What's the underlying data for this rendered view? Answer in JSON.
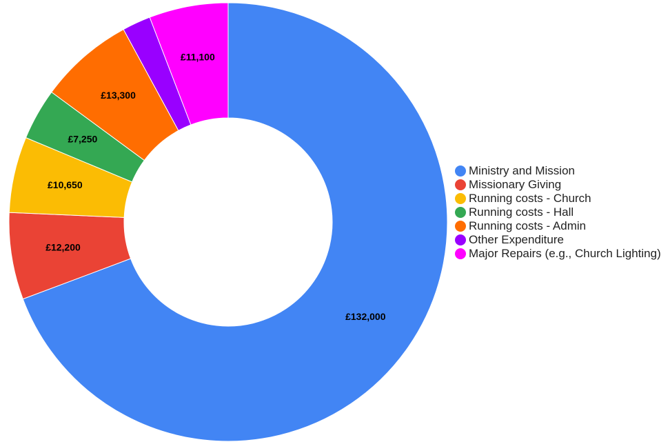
{
  "chart_data": {
    "type": "donut",
    "categories": [
      "Ministry and Mission",
      "Missionary Giving",
      "Running costs - Church",
      "Running costs - Hall",
      "Running costs - Admin",
      "Other Expenditure",
      "Major Repairs (e.g., Church Lighting)"
    ],
    "values": [
      132000,
      12200,
      10650,
      7250,
      13300,
      4000,
      11100
    ],
    "value_labels": [
      "£132,000",
      "£12,200",
      "£10,650",
      "£7,250",
      "£13,300",
      null,
      "£11,100"
    ],
    "colors": [
      "#4285f4",
      "#ea4335",
      "#fbbc04",
      "#34a853",
      "#ff6d01",
      "#9900ff",
      "#ff00ff"
    ],
    "legend": "right"
  }
}
